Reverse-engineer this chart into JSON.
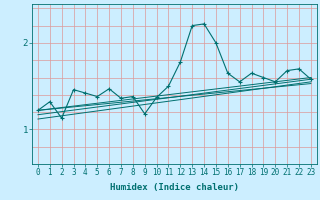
{
  "xlabel": "Humidex (Indice chaleur)",
  "background_color": "#cceeff",
  "grid_color": "#dd9999",
  "line_color": "#007070",
  "xlim": [
    -0.5,
    23.5
  ],
  "ylim": [
    0.6,
    2.45
  ],
  "x": [
    0,
    1,
    2,
    3,
    4,
    5,
    6,
    7,
    8,
    9,
    10,
    11,
    12,
    13,
    14,
    15,
    16,
    17,
    18,
    19,
    20,
    21,
    22,
    23
  ],
  "y_main": [
    1.22,
    1.32,
    1.13,
    1.46,
    1.42,
    1.38,
    1.47,
    1.36,
    1.38,
    1.18,
    1.37,
    1.5,
    1.78,
    2.2,
    2.22,
    2.0,
    1.65,
    1.55,
    1.65,
    1.6,
    1.55,
    1.68,
    1.7,
    1.58
  ],
  "trend_lines": [
    {
      "x0": 0,
      "y0": 1.22,
      "x1": 23,
      "y1": 1.6
    },
    {
      "x0": 0,
      "y0": 1.17,
      "x1": 23,
      "y1": 1.58
    },
    {
      "x0": 0,
      "y0": 1.12,
      "x1": 23,
      "y1": 1.55
    },
    {
      "x0": 0,
      "y0": 1.22,
      "x1": 23,
      "y1": 1.53
    }
  ],
  "ytick_values": [
    1,
    2
  ],
  "tick_fontsize": 5.5,
  "axis_fontsize": 6.5
}
